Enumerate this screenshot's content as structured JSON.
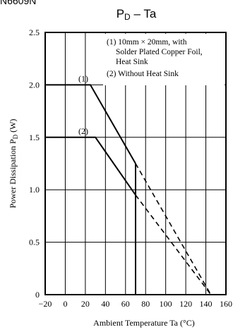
{
  "header": {
    "part_number": "N6609N"
  },
  "chart_data": {
    "type": "line",
    "title": "PD – Ta",
    "title_main": "P",
    "title_sub": "D",
    "title_rest": " – Ta",
    "xlabel": "Ambient Temperature  Ta (°C)",
    "ylabel": "Power Dissipation  P",
    "ylabel_sub": "D",
    "ylabel_unit": " (W)",
    "xlim": [
      -20,
      160
    ],
    "ylim": [
      0,
      2.5
    ],
    "x_ticks": [
      -20,
      0,
      20,
      40,
      60,
      80,
      100,
      120,
      140,
      160
    ],
    "y_ticks": [
      0,
      0.5,
      1.0,
      1.5,
      2.0,
      2.5
    ],
    "y_tick_labels": [
      "0",
      "0.5",
      "1.0",
      "1.5",
      "2.0",
      "2.5"
    ],
    "grid": true,
    "legend_lines": [
      "(1) 10mm × 20mm, with",
      "Solder Plated Copper Foil,",
      "Heat Sink",
      "(2) Without Heat Sink"
    ],
    "series": [
      {
        "name": "(1)",
        "solid": [
          [
            -20,
            2.0
          ],
          [
            25,
            2.0
          ],
          [
            70,
            1.25
          ]
        ],
        "dashed": [
          [
            70,
            1.25
          ],
          [
            145,
            0
          ]
        ]
      },
      {
        "name": "(2)",
        "solid": [
          [
            -20,
            1.5
          ],
          [
            30,
            1.5
          ],
          [
            70,
            0.95
          ]
        ],
        "dashed": [
          [
            70,
            0.95
          ],
          [
            145,
            0
          ]
        ]
      }
    ],
    "vertical_line": {
      "x": 70,
      "y_top": 1.25
    }
  }
}
